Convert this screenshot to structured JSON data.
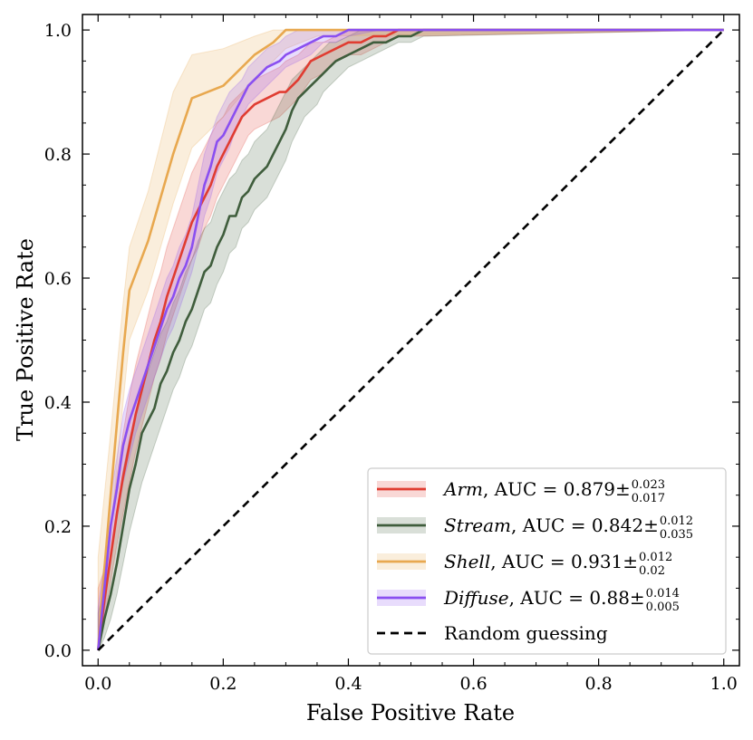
{
  "chart_data": {
    "type": "line",
    "title": "",
    "xlabel": "False Positive Rate",
    "ylabel": "True Positive Rate",
    "xlim": [
      -0.025,
      1.025
    ],
    "ylim": [
      -0.025,
      1.025
    ],
    "xticks": [
      "0.0",
      "0.2",
      "0.4",
      "0.6",
      "0.8",
      "1.0"
    ],
    "yticks": [
      "0.0",
      "0.2",
      "0.4",
      "0.6",
      "0.8",
      "1.0"
    ],
    "legend_position": "bottom-right",
    "series": [
      {
        "name": "Arm",
        "auc_text": ", AUC = 0.879±",
        "auc_sup": "0.023",
        "auc_sub": "0.017",
        "color": "#e03c31",
        "x": [
          0,
          0.01,
          0.02,
          0.03,
          0.04,
          0.05,
          0.06,
          0.07,
          0.08,
          0.09,
          0.1,
          0.11,
          0.12,
          0.13,
          0.14,
          0.15,
          0.16,
          0.17,
          0.18,
          0.19,
          0.2,
          0.21,
          0.22,
          0.23,
          0.24,
          0.25,
          0.27,
          0.29,
          0.3,
          0.32,
          0.34,
          0.36,
          0.38,
          0.4,
          0.42,
          0.44,
          0.46,
          0.48,
          0.5,
          1.0
        ],
        "y": [
          0,
          0.08,
          0.15,
          0.22,
          0.28,
          0.33,
          0.38,
          0.42,
          0.46,
          0.5,
          0.53,
          0.57,
          0.6,
          0.63,
          0.66,
          0.69,
          0.71,
          0.73,
          0.75,
          0.78,
          0.8,
          0.82,
          0.84,
          0.86,
          0.87,
          0.88,
          0.89,
          0.9,
          0.9,
          0.92,
          0.95,
          0.96,
          0.97,
          0.98,
          0.98,
          0.99,
          0.99,
          1.0,
          1.0,
          1.0
        ],
        "lower": [
          0,
          0.05,
          0.11,
          0.17,
          0.22,
          0.27,
          0.32,
          0.36,
          0.4,
          0.44,
          0.47,
          0.51,
          0.54,
          0.57,
          0.6,
          0.63,
          0.65,
          0.68,
          0.7,
          0.73,
          0.75,
          0.77,
          0.79,
          0.81,
          0.83,
          0.84,
          0.85,
          0.86,
          0.87,
          0.89,
          0.92,
          0.93,
          0.95,
          0.96,
          0.96,
          0.97,
          0.98,
          0.99,
          0.99,
          1.0
        ],
        "upper": [
          0.1,
          0.13,
          0.2,
          0.28,
          0.35,
          0.41,
          0.46,
          0.5,
          0.54,
          0.58,
          0.61,
          0.65,
          0.68,
          0.71,
          0.74,
          0.77,
          0.79,
          0.81,
          0.83,
          0.85,
          0.86,
          0.88,
          0.89,
          0.9,
          0.91,
          0.92,
          0.93,
          0.94,
          0.95,
          0.96,
          0.98,
          0.98,
          0.99,
          1.0,
          1.0,
          1.0,
          1.0,
          1.0,
          1.0,
          1.0
        ]
      },
      {
        "name": "Stream",
        "auc_text": ", AUC = 0.842±",
        "auc_sup": "0.012",
        "auc_sub": "0.035",
        "color": "#3f5d3c",
        "x": [
          0,
          0.01,
          0.02,
          0.03,
          0.04,
          0.05,
          0.06,
          0.07,
          0.08,
          0.09,
          0.1,
          0.11,
          0.12,
          0.13,
          0.14,
          0.15,
          0.16,
          0.17,
          0.18,
          0.19,
          0.2,
          0.21,
          0.22,
          0.23,
          0.24,
          0.25,
          0.26,
          0.27,
          0.28,
          0.29,
          0.3,
          0.31,
          0.32,
          0.33,
          0.34,
          0.35,
          0.36,
          0.37,
          0.38,
          0.4,
          0.42,
          0.44,
          0.46,
          0.48,
          0.5,
          0.52,
          1.0
        ],
        "y": [
          0,
          0.05,
          0.09,
          0.14,
          0.2,
          0.26,
          0.3,
          0.35,
          0.37,
          0.39,
          0.43,
          0.45,
          0.48,
          0.5,
          0.53,
          0.55,
          0.58,
          0.61,
          0.62,
          0.65,
          0.67,
          0.7,
          0.7,
          0.73,
          0.74,
          0.76,
          0.77,
          0.78,
          0.8,
          0.82,
          0.84,
          0.87,
          0.89,
          0.9,
          0.91,
          0.92,
          0.93,
          0.94,
          0.95,
          0.96,
          0.97,
          0.98,
          0.98,
          0.99,
          0.99,
          1.0,
          1.0
        ],
        "lower": [
          0,
          0.02,
          0.05,
          0.09,
          0.14,
          0.19,
          0.23,
          0.27,
          0.3,
          0.33,
          0.36,
          0.39,
          0.42,
          0.44,
          0.47,
          0.49,
          0.52,
          0.55,
          0.56,
          0.59,
          0.61,
          0.64,
          0.65,
          0.68,
          0.69,
          0.71,
          0.72,
          0.73,
          0.75,
          0.77,
          0.79,
          0.82,
          0.84,
          0.86,
          0.87,
          0.88,
          0.9,
          0.91,
          0.92,
          0.94,
          0.95,
          0.96,
          0.97,
          0.98,
          0.98,
          0.99,
          1.0
        ],
        "upper": [
          0.06,
          0.1,
          0.15,
          0.22,
          0.29,
          0.34,
          0.38,
          0.42,
          0.45,
          0.48,
          0.51,
          0.53,
          0.56,
          0.58,
          0.61,
          0.63,
          0.66,
          0.68,
          0.69,
          0.72,
          0.74,
          0.76,
          0.77,
          0.79,
          0.8,
          0.82,
          0.83,
          0.84,
          0.86,
          0.88,
          0.9,
          0.92,
          0.93,
          0.94,
          0.95,
          0.96,
          0.97,
          0.98,
          0.98,
          0.99,
          1.0,
          1.0,
          1.0,
          1.0,
          1.0,
          1.0,
          1.0
        ]
      },
      {
        "name": "Shell",
        "auc_text": ", AUC = 0.931±",
        "auc_sup": "0.012",
        "auc_sub": "0.02",
        "color": "#e8a84f",
        "x": [
          0,
          0.005,
          0.02,
          0.04,
          0.05,
          0.08,
          0.1,
          0.12,
          0.15,
          0.2,
          0.25,
          0.28,
          0.3,
          0.35,
          1.0
        ],
        "y": [
          0,
          0.07,
          0.25,
          0.48,
          0.58,
          0.66,
          0.73,
          0.8,
          0.89,
          0.91,
          0.96,
          0.98,
          1.0,
          1.0,
          1.0
        ],
        "lower": [
          0,
          0.03,
          0.19,
          0.4,
          0.5,
          0.58,
          0.65,
          0.72,
          0.81,
          0.86,
          0.92,
          0.95,
          0.97,
          0.99,
          1.0
        ],
        "upper": [
          0.15,
          0.2,
          0.35,
          0.56,
          0.65,
          0.74,
          0.82,
          0.9,
          0.96,
          0.97,
          0.99,
          1.0,
          1.0,
          1.0,
          1.0
        ]
      },
      {
        "name": "Diffuse",
        "auc_text": ", AUC = 0.88±",
        "auc_sup": "0.014",
        "auc_sub": "0.005",
        "color": "#8a4ff0",
        "x": [
          0,
          0.01,
          0.02,
          0.03,
          0.04,
          0.05,
          0.06,
          0.07,
          0.08,
          0.09,
          0.1,
          0.11,
          0.12,
          0.13,
          0.14,
          0.15,
          0.16,
          0.17,
          0.18,
          0.19,
          0.2,
          0.21,
          0.22,
          0.23,
          0.24,
          0.25,
          0.27,
          0.29,
          0.3,
          0.32,
          0.34,
          0.36,
          0.38,
          0.4,
          0.45,
          0.5,
          1.0
        ],
        "y": [
          0,
          0.1,
          0.2,
          0.26,
          0.33,
          0.37,
          0.4,
          0.43,
          0.46,
          0.49,
          0.52,
          0.55,
          0.57,
          0.6,
          0.62,
          0.65,
          0.7,
          0.75,
          0.78,
          0.82,
          0.83,
          0.85,
          0.87,
          0.89,
          0.91,
          0.92,
          0.94,
          0.95,
          0.96,
          0.97,
          0.98,
          0.99,
          0.99,
          1.0,
          1.0,
          1.0,
          1.0
        ],
        "lower": [
          0,
          0.06,
          0.15,
          0.21,
          0.27,
          0.31,
          0.35,
          0.38,
          0.41,
          0.44,
          0.47,
          0.5,
          0.52,
          0.55,
          0.58,
          0.61,
          0.65,
          0.7,
          0.73,
          0.77,
          0.79,
          0.81,
          0.84,
          0.86,
          0.88,
          0.89,
          0.91,
          0.93,
          0.94,
          0.95,
          0.96,
          0.98,
          0.98,
          0.99,
          1.0,
          1.0,
          1.0
        ],
        "upper": [
          0.07,
          0.14,
          0.25,
          0.31,
          0.38,
          0.42,
          0.45,
          0.48,
          0.51,
          0.54,
          0.57,
          0.6,
          0.62,
          0.65,
          0.67,
          0.7,
          0.75,
          0.8,
          0.83,
          0.86,
          0.88,
          0.9,
          0.91,
          0.92,
          0.94,
          0.95,
          0.97,
          0.98,
          0.99,
          1.0,
          1.0,
          1.0,
          1.0,
          1.0,
          1.0,
          1.0,
          1.0
        ]
      },
      {
        "name": "Random guessing",
        "color": "#000000",
        "dashed": true,
        "x": [
          0,
          1
        ],
        "y": [
          0,
          1
        ]
      }
    ]
  }
}
